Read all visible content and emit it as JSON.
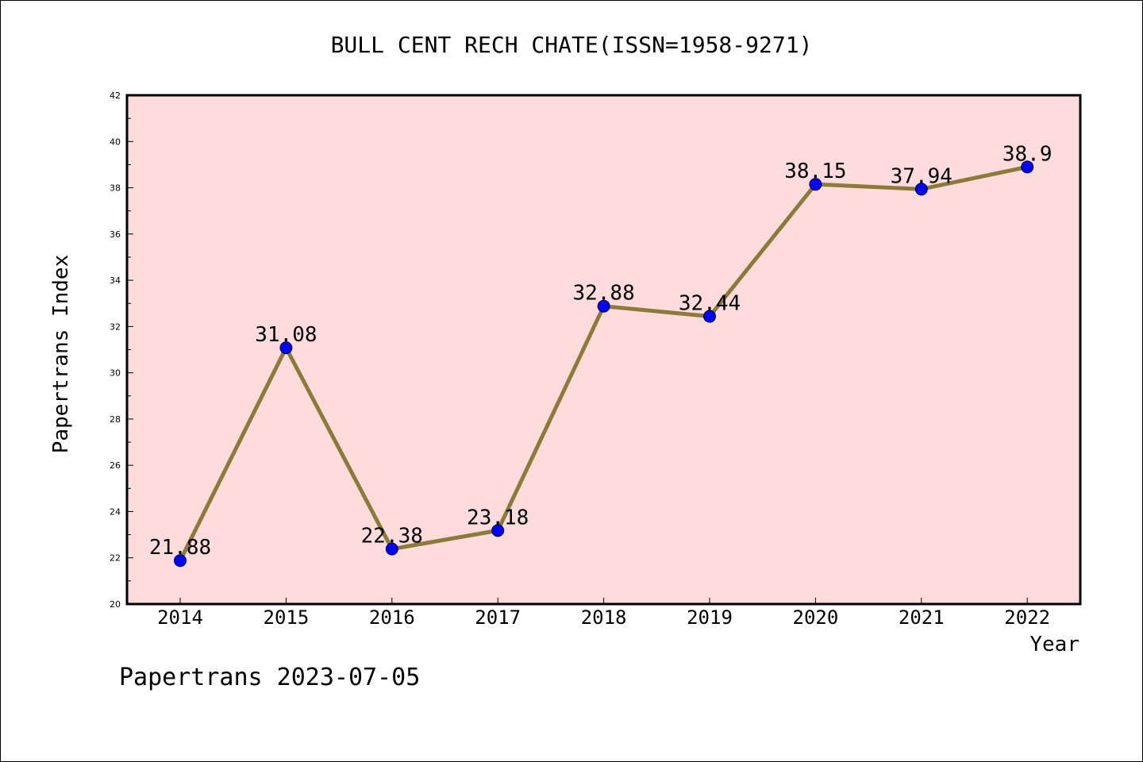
{
  "chart_data": {
    "type": "line",
    "title": "BULL CENT RECH CHATE(ISSN=1958-9271)",
    "xlabel": "Year",
    "ylabel": "Papertrans Index",
    "footer": "Papertrans 2023-07-05",
    "categories": [
      "2014",
      "2015",
      "2016",
      "2017",
      "2018",
      "2019",
      "2020",
      "2021",
      "2022"
    ],
    "values": [
      21.88,
      31.08,
      22.38,
      23.18,
      32.88,
      32.44,
      38.15,
      37.94,
      38.9
    ],
    "value_labels": [
      "21.88",
      "31.08",
      "22.38",
      "23.18",
      "32.88",
      "32.44",
      "38.15",
      "37.94",
      "38.9"
    ],
    "ylim": [
      20,
      42
    ],
    "yticks": [
      "20",
      "22",
      "24",
      "26",
      "28",
      "30",
      "32",
      "34",
      "36",
      "38",
      "40",
      "42"
    ],
    "grid": false,
    "legend": "none",
    "colors": {
      "plot_background": "#ffdcdc",
      "line": "#8b7a3a",
      "marker": "#0000ff",
      "axis": "#000000"
    }
  }
}
